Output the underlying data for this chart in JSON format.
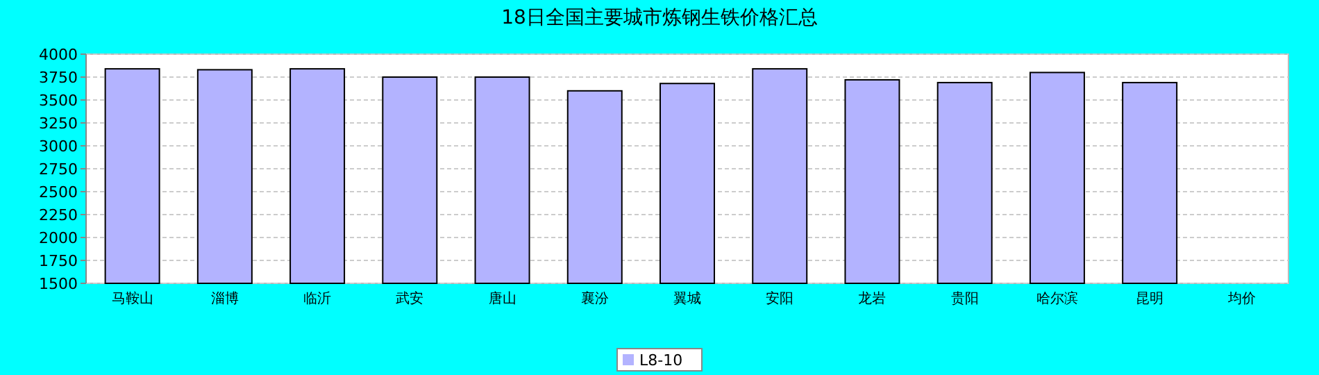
{
  "chart_data": {
    "type": "bar",
    "title": "18日全国主要城市炼钢生铁价格汇总",
    "categories": [
      "马鞍山",
      "淄博",
      "临沂",
      "武安",
      "唐山",
      "襄汾",
      "翼城",
      "安阳",
      "龙岩",
      "贵阳",
      "哈尔滨",
      "昆明",
      "均价"
    ],
    "series": [
      {
        "name": "L8-10",
        "color": "#b3b3ff",
        "values": [
          3840,
          3830,
          3840,
          3750,
          3750,
          3600,
          3680,
          3840,
          3720,
          3690,
          3800,
          3690,
          null
        ]
      }
    ],
    "ylim": [
      1500,
      4000
    ],
    "yticks": [
      1500,
      1750,
      2000,
      2250,
      2500,
      2750,
      3000,
      3250,
      3500,
      3750,
      4000
    ],
    "grid": "y",
    "legend": "bottom"
  }
}
